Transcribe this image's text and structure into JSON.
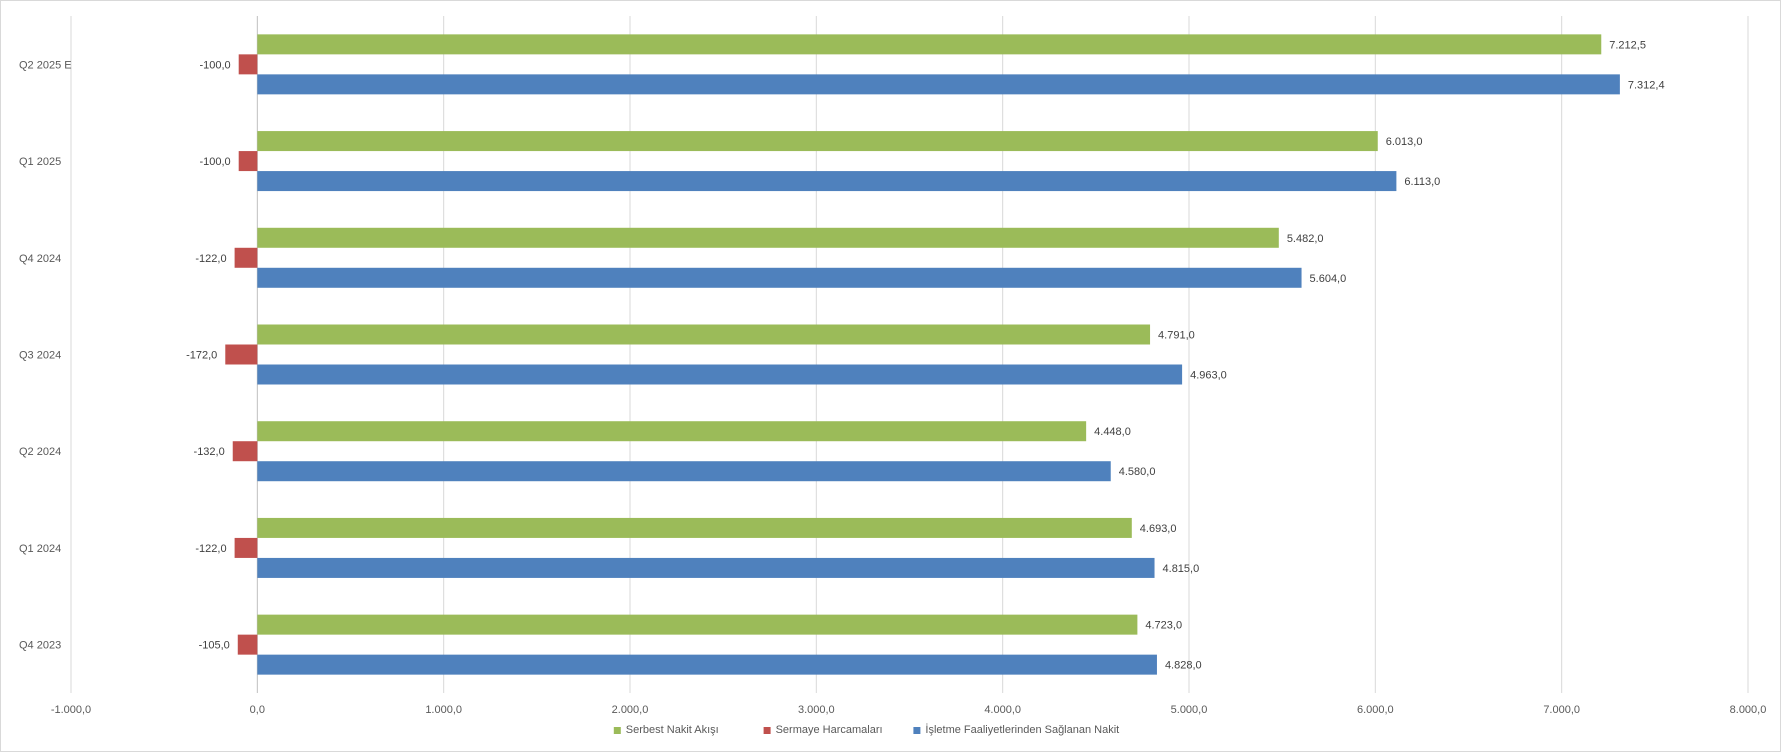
{
  "chart_data": {
    "type": "bar",
    "orientation": "horizontal",
    "title": "",
    "xlabel": "",
    "ylabel": "",
    "categories": [
      "Q2 2025 E",
      "Q1 2025",
      "Q4 2024",
      "Q3 2024",
      "Q2 2024",
      "Q1 2024",
      "Q4 2023"
    ],
    "series": [
      {
        "name": "Serbest Nakit Akışı",
        "color": "#9bbb59",
        "values": [
          7212.5,
          6013.0,
          5482.0,
          4791.0,
          4448.0,
          4693.0,
          4723.0
        ],
        "labels": [
          "7.212,5",
          "6.013,0",
          "5.482,0",
          "4.791,0",
          "4.448,0",
          "4.693,0",
          "4.723,0"
        ]
      },
      {
        "name": "Sermaye Harcamaları",
        "color": "#c0504d",
        "values": [
          -100.0,
          -100.0,
          -122.0,
          -172.0,
          -132.0,
          -122.0,
          -105.0
        ],
        "labels": [
          "-100,0",
          "-100,0",
          "-122,0",
          "-172,0",
          "-132,0",
          "-122,0",
          "-105,0"
        ]
      },
      {
        "name": "İşletme Faaliyetlerinden Sağlanan Nakit",
        "color": "#4f81bd",
        "values": [
          7312.4,
          6113.0,
          5604.0,
          4963.0,
          4580.0,
          4815.0,
          4828.0
        ],
        "labels": [
          "7.312,4",
          "6.113,0",
          "5.604,0",
          "4.963,0",
          "4.580,0",
          "4.815,0",
          "4.828,0"
        ]
      }
    ],
    "xlim": [
      -1000,
      8000
    ],
    "xticks": [
      -1000,
      0,
      1000,
      2000,
      3000,
      4000,
      5000,
      6000,
      7000,
      8000
    ],
    "xtick_labels": [
      "-1.000,0",
      "0,0",
      "1.000,0",
      "2.000,0",
      "3.000,0",
      "4.000,0",
      "5.000,0",
      "6.000,0",
      "7.000,0",
      "8.000,0"
    ],
    "grid": "vertical",
    "legend_position": "bottom"
  }
}
